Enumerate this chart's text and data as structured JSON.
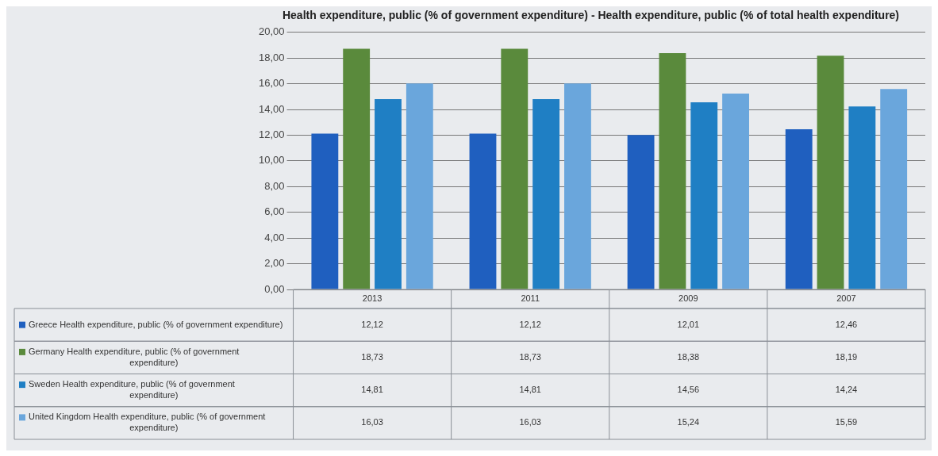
{
  "chart_data": {
    "type": "bar",
    "title": "Health expenditure, public (% of government expenditure) - Health expenditure, public (% of total health expenditure)",
    "categories": [
      "2013",
      "2011",
      "2009",
      "2007"
    ],
    "series": [
      {
        "name": "Greece Health expenditure, public (% of government expenditure)",
        "color": "#1f5fbf",
        "values": [
          12.12,
          12.12,
          12.01,
          12.46
        ],
        "value_labels": [
          "12,12",
          "12,12",
          "12,01",
          "12,46"
        ]
      },
      {
        "name": "Germany Health expenditure, public (% of government expenditure)",
        "color": "#5a8a3c",
        "values": [
          18.73,
          18.73,
          18.38,
          18.19
        ],
        "value_labels": [
          "18,73",
          "18,73",
          "18,38",
          "18,19"
        ]
      },
      {
        "name": "Sweden Health expenditure, public (% of government expenditure)",
        "color": "#1f7fc4",
        "values": [
          14.81,
          14.81,
          14.56,
          14.24
        ],
        "value_labels": [
          "14,81",
          "14,81",
          "14,56",
          "14,24"
        ]
      },
      {
        "name": "United Kingdom Health expenditure, public (% of government expenditure)",
        "color": "#6aa6dc",
        "values": [
          16.03,
          16.03,
          15.24,
          15.59
        ],
        "value_labels": [
          "16,03",
          "16,03",
          "15,24",
          "15,59"
        ]
      }
    ],
    "ylim": [
      0,
      20
    ],
    "yticks": [
      {
        "value": 0,
        "label": "0,00"
      },
      {
        "value": 2,
        "label": "2,00"
      },
      {
        "value": 4,
        "label": "4,00"
      },
      {
        "value": 6,
        "label": "6,00"
      },
      {
        "value": 8,
        "label": "8,00"
      },
      {
        "value": 10,
        "label": "10,00"
      },
      {
        "value": 12,
        "label": "12,00"
      },
      {
        "value": 14,
        "label": "14,00"
      },
      {
        "value": 16,
        "label": "16,00"
      },
      {
        "value": 18,
        "label": "18,00"
      },
      {
        "value": 20,
        "label": "20,00"
      }
    ],
    "grid": "y",
    "legend": "bottom left"
  }
}
